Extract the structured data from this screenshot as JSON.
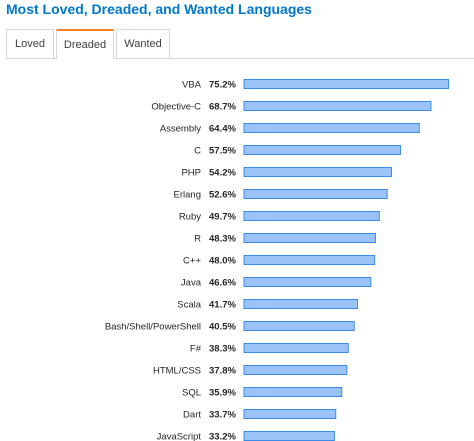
{
  "title": "Most Loved, Dreaded, and Wanted Languages",
  "tabs": [
    {
      "label": "Loved",
      "active": false
    },
    {
      "label": "Dreaded",
      "active": true
    },
    {
      "label": "Wanted",
      "active": false
    }
  ],
  "colors": {
    "title": "#0077cc",
    "active_tab": "#f48024",
    "bar_fill": "#9cc3f5",
    "bar_stroke": "#3b8ce8"
  },
  "chart_data": {
    "type": "bar",
    "orientation": "horizontal",
    "categories": [
      "VBA",
      "Objective-C",
      "Assembly",
      "C",
      "PHP",
      "Erlang",
      "Ruby",
      "R",
      "C++",
      "Java",
      "Scala",
      "Bash/Shell/PowerShell",
      "F#",
      "HTML/CSS",
      "SQL",
      "Dart",
      "JavaScript"
    ],
    "values": [
      75.2,
      68.7,
      64.4,
      57.5,
      54.2,
      52.6,
      49.7,
      48.3,
      48.0,
      46.6,
      41.7,
      40.5,
      38.3,
      37.8,
      35.9,
      33.7,
      33.2
    ],
    "value_labels": [
      "75.2%",
      "68.7%",
      "64.4%",
      "57.5%",
      "54.2%",
      "52.6%",
      "49.7%",
      "48.3%",
      "48.0%",
      "46.6%",
      "41.7%",
      "40.5%",
      "38.3%",
      "37.8%",
      "35.9%",
      "33.7%",
      "33.2%"
    ],
    "xlim": [
      0,
      79
    ],
    "grid": false
  }
}
